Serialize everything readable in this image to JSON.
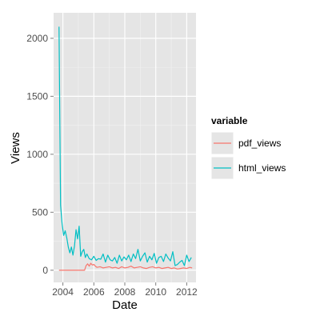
{
  "chart_data": {
    "type": "line",
    "xlabel": "Date",
    "ylabel": "Views",
    "xlim": [
      2003.4,
      2012.6
    ],
    "ylim": [
      -105,
      2220
    ],
    "x_ticks": [
      2004,
      2006,
      2008,
      2010,
      2012
    ],
    "x_tick_labels": [
      "2004",
      "2006",
      "2008",
      "2010",
      "2012"
    ],
    "y_ticks": [
      0,
      500,
      1000,
      1500,
      2000
    ],
    "y_tick_labels": [
      "0",
      "500",
      "1000",
      "1500",
      "2000"
    ],
    "grid": true,
    "legend": {
      "title": "variable",
      "position": "right"
    },
    "series": [
      {
        "name": "pdf_views",
        "color": "#F8766D",
        "x": [
          2003.75,
          2004.5,
          2005.0,
          2005.4,
          2005.5,
          2005.6,
          2005.7,
          2005.8,
          2005.9,
          2006.0,
          2006.1,
          2006.2,
          2006.4,
          2006.6,
          2006.8,
          2007.0,
          2007.2,
          2007.4,
          2007.6,
          2007.8,
          2008.0,
          2008.2,
          2008.4,
          2008.6,
          2008.8,
          2009.0,
          2009.2,
          2009.4,
          2009.6,
          2009.8,
          2010.0,
          2010.2,
          2010.4,
          2010.6,
          2010.8,
          2011.0,
          2011.2,
          2011.4,
          2011.6,
          2011.8,
          2012.0,
          2012.2,
          2012.35
        ],
        "y": [
          0,
          0,
          0,
          0,
          40,
          55,
          35,
          60,
          45,
          50,
          35,
          25,
          30,
          20,
          25,
          30,
          20,
          25,
          15,
          30,
          20,
          25,
          35,
          20,
          25,
          30,
          20,
          15,
          25,
          30,
          20,
          25,
          15,
          20,
          25,
          15,
          20,
          10,
          15,
          20,
          15,
          25,
          20
        ]
      },
      {
        "name": "html_views",
        "color": "#00BFC4",
        "x": [
          2003.75,
          2003.85,
          2003.95,
          2004.05,
          2004.15,
          2004.25,
          2004.35,
          2004.45,
          2004.55,
          2004.65,
          2004.75,
          2004.85,
          2004.95,
          2005.05,
          2005.15,
          2005.25,
          2005.35,
          2005.45,
          2005.55,
          2005.7,
          2005.85,
          2006.0,
          2006.15,
          2006.3,
          2006.45,
          2006.6,
          2006.75,
          2006.9,
          2007.05,
          2007.2,
          2007.35,
          2007.5,
          2007.65,
          2007.8,
          2007.95,
          2008.1,
          2008.25,
          2008.4,
          2008.55,
          2008.7,
          2008.85,
          2009.0,
          2009.15,
          2009.3,
          2009.45,
          2009.6,
          2009.75,
          2009.9,
          2010.05,
          2010.2,
          2010.35,
          2010.5,
          2010.65,
          2010.8,
          2010.95,
          2011.1,
          2011.25,
          2011.4,
          2011.55,
          2011.7,
          2011.85,
          2012.0,
          2012.15,
          2012.3
        ],
        "y": [
          2100,
          560,
          400,
          300,
          340,
          280,
          200,
          150,
          200,
          130,
          210,
          350,
          270,
          380,
          120,
          160,
          180,
          110,
          140,
          100,
          90,
          120,
          85,
          100,
          95,
          140,
          70,
          130,
          90,
          80,
          110,
          60,
          130,
          80,
          115,
          90,
          130,
          75,
          140,
          100,
          180,
          80,
          120,
          150,
          70,
          120,
          90,
          145,
          60,
          110,
          120,
          75,
          140,
          105,
          80,
          160,
          40,
          50,
          70,
          85,
          40,
          130,
          75,
          110
        ]
      }
    ]
  }
}
